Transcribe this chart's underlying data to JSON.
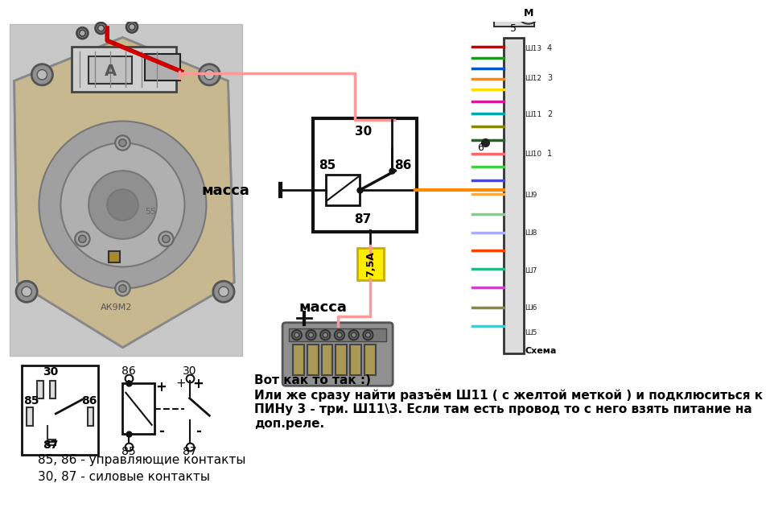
{
  "bg_color": "#ffffff",
  "text_annotation": "Вот как то так :)\nИли же сразу найти разъём Ш11 ( с желтой меткой ) и подклюситься к\nПИНу 3 - три. Ш11\\3. Если там есть провод то с него взять питание на\nдоп.реле.",
  "label1": "85, 86 - управляющие контакты",
  "label2": "30, 87 - силовые контакты",
  "massa_label": "масса",
  "fuse_label": "7,5А",
  "pink_color": "#ff9999",
  "orange_color": "#ff8800",
  "yellow_color": "#ffee00",
  "schema_label": "Схема"
}
